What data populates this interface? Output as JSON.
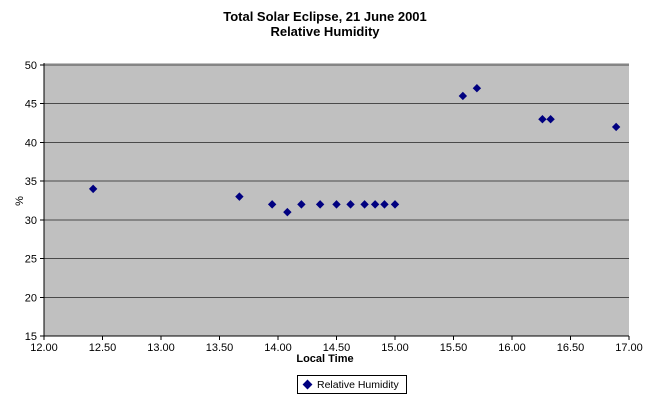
{
  "header": {
    "title": "Total Solar Eclipse, 21 June 2001",
    "subtitle": "Relative Humidity"
  },
  "chart_data": {
    "type": "scatter",
    "title": "Total Solar Eclipse, 21 June 2001",
    "subtitle": "Relative Humidity",
    "xlabel": "Local Time",
    "ylabel": "%",
    "xlim": [
      12.0,
      17.0
    ],
    "ylim": [
      15,
      50
    ],
    "xticks": [
      "12.00",
      "12.50",
      "13.00",
      "13.50",
      "14.00",
      "14.50",
      "15.00",
      "15.50",
      "16.00",
      "16.50",
      "17.00"
    ],
    "yticks": [
      15,
      20,
      25,
      30,
      35,
      40,
      45,
      50
    ],
    "grid": "horizontal-only",
    "legend_position": "bottom-center",
    "series": [
      {
        "name": "Relative Humidity",
        "marker": "diamond",
        "color": "#000080",
        "points": [
          [
            12.42,
            34
          ],
          [
            13.67,
            33
          ],
          [
            13.95,
            32
          ],
          [
            14.08,
            31
          ],
          [
            14.2,
            32
          ],
          [
            14.36,
            32
          ],
          [
            14.5,
            32
          ],
          [
            14.62,
            32
          ],
          [
            14.74,
            32
          ],
          [
            14.83,
            32
          ],
          [
            14.91,
            32
          ],
          [
            15.0,
            32
          ],
          [
            15.58,
            46
          ],
          [
            15.7,
            47
          ],
          [
            16.26,
            43
          ],
          [
            16.33,
            43
          ],
          [
            16.89,
            42
          ]
        ]
      }
    ],
    "colors": {
      "background": "#FFFFFF",
      "plot_bg": "#C0C0C0",
      "gridline": "#4A4A4A",
      "axis": "#000000",
      "marker": "#000080",
      "tick_text": "#000000",
      "legend_border": "#000000",
      "legend_bg": "#FFFFFF"
    }
  }
}
